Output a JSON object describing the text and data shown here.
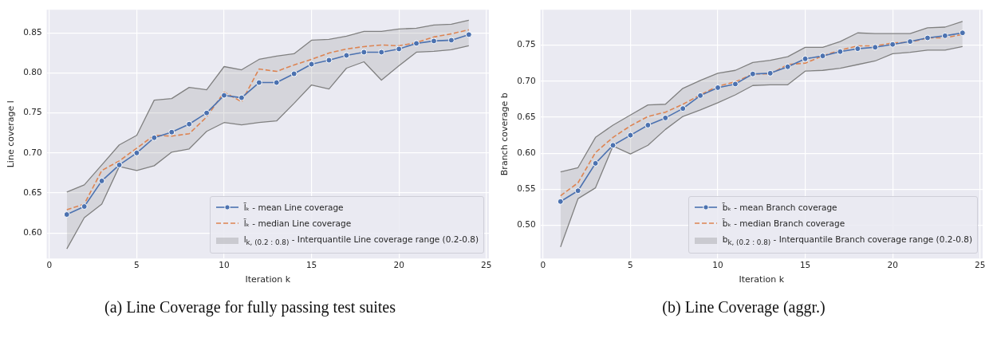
{
  "chart_data": [
    {
      "type": "line",
      "title": "(a) Line Coverage for fully passing test suites",
      "xlabel": "Iteration k",
      "ylabel": "Line coverage l",
      "x": [
        1,
        2,
        3,
        4,
        5,
        6,
        7,
        8,
        9,
        10,
        11,
        12,
        13,
        14,
        15,
        16,
        17,
        18,
        19,
        20,
        21,
        22,
        23,
        24
      ],
      "xlim": [
        -0.15,
        25.15
      ],
      "xticks": [
        0,
        5,
        10,
        15,
        20,
        25
      ],
      "ylim": [
        0.568,
        0.879
      ],
      "yticks": [
        {
          "value": 0.6,
          "label": "0.60"
        },
        {
          "value": 0.65,
          "label": "0.65"
        },
        {
          "value": 0.7,
          "label": "0.70"
        },
        {
          "value": 0.75,
          "label": "0.75"
        },
        {
          "value": 0.8,
          "label": "0.80"
        },
        {
          "value": 0.85,
          "label": "0.85"
        }
      ],
      "grid": true,
      "legend": "bottom right",
      "annotations": [
        "l$_{k, (0.2 : 0.8)}$ - Interquantile Line coverage range (0.2-0.8)"
      ],
      "series": [
        {
          "name": "l̄ₖ - mean Line coverage",
          "color": "#4c72b0",
          "marker": "circle",
          "values": [
            0.623,
            0.633,
            0.665,
            0.685,
            0.7,
            0.719,
            0.726,
            0.736,
            0.75,
            0.772,
            0.769,
            0.788,
            0.788,
            0.799,
            0.811,
            0.816,
            0.822,
            0.826,
            0.826,
            0.83,
            0.837,
            0.84,
            0.841,
            0.848
          ],
          "lower": [
            0.58,
            0.619,
            0.636,
            0.683,
            0.678,
            0.684,
            0.701,
            0.705,
            0.727,
            0.738,
            0.735,
            0.738,
            0.74,
            0.762,
            0.785,
            0.78,
            0.806,
            0.814,
            0.791,
            0.809,
            0.826,
            0.827,
            0.829,
            0.834
          ],
          "upper": [
            0.651,
            0.66,
            0.685,
            0.71,
            0.722,
            0.766,
            0.768,
            0.782,
            0.779,
            0.808,
            0.804,
            0.817,
            0.821,
            0.824,
            0.841,
            0.842,
            0.846,
            0.852,
            0.852,
            0.855,
            0.856,
            0.86,
            0.861,
            0.866
          ]
        },
        {
          "name": "l̃ₖ - median Line coverage",
          "color": "#dd8452",
          "line_style": "dashed",
          "values": [
            0.629,
            0.636,
            0.678,
            0.69,
            0.706,
            0.722,
            0.721,
            0.724,
            0.745,
            0.776,
            0.764,
            0.805,
            0.802,
            0.81,
            0.817,
            0.825,
            0.83,
            0.833,
            0.835,
            0.834,
            0.838,
            0.845,
            0.849,
            0.854
          ]
        },
        {
          "color": "#808080",
          "values": [
            0.58,
            0.619,
            0.636,
            0.683,
            0.678,
            0.684,
            0.701,
            0.705,
            0.727,
            0.738,
            0.735,
            0.738,
            0.74,
            0.762,
            0.785,
            0.78,
            0.806,
            0.814,
            0.791,
            0.809,
            0.826,
            0.827,
            0.829,
            0.834
          ]
        },
        {
          "color": "#808080",
          "values": [
            0.651,
            0.66,
            0.685,
            0.71,
            0.722,
            0.766,
            0.768,
            0.782,
            0.779,
            0.808,
            0.804,
            0.817,
            0.821,
            0.824,
            0.841,
            0.842,
            0.846,
            0.852,
            0.852,
            0.855,
            0.856,
            0.86,
            0.861,
            0.866
          ]
        }
      ]
    },
    {
      "type": "line",
      "title": "(b) Line Coverage (aggr.)",
      "xlabel": "Iteration k",
      "ylabel": "Branch coverage b",
      "x": [
        1,
        2,
        3,
        4,
        5,
        6,
        7,
        8,
        9,
        10,
        11,
        12,
        13,
        14,
        15,
        16,
        17,
        18,
        19,
        20,
        21,
        22,
        23,
        24
      ],
      "xlim": [
        -0.15,
        25.15
      ],
      "xticks": [
        0,
        5,
        10,
        15,
        20,
        25
      ],
      "ylim": [
        0.454,
        0.799
      ],
      "yticks": [
        {
          "value": 0.5,
          "label": "0.50"
        },
        {
          "value": 0.55,
          "label": "0.55"
        },
        {
          "value": 0.6,
          "label": "0.60"
        },
        {
          "value": 0.65,
          "label": "0.65"
        },
        {
          "value": 0.7,
          "label": "0.70"
        },
        {
          "value": 0.75,
          "label": "0.75"
        }
      ],
      "grid": true,
      "legend": "bottom right",
      "annotations": [
        "b$_{k, (0.2 : 0.8)}$ - Interquantile Branch coverage range (0.2-0.8)"
      ],
      "series": [
        {
          "name": "b̄ₖ - mean Branch coverage",
          "color": "#4c72b0",
          "marker": "circle",
          "values": [
            0.533,
            0.548,
            0.586,
            0.611,
            0.625,
            0.639,
            0.649,
            0.662,
            0.68,
            0.691,
            0.696,
            0.71,
            0.711,
            0.72,
            0.731,
            0.735,
            0.741,
            0.745,
            0.747,
            0.751,
            0.755,
            0.76,
            0.763,
            0.767
          ],
          "lower": [
            0.47,
            0.537,
            0.552,
            0.61,
            0.599,
            0.611,
            0.633,
            0.651,
            0.66,
            0.67,
            0.681,
            0.694,
            0.695,
            0.695,
            0.714,
            0.715,
            0.718,
            0.723,
            0.728,
            0.738,
            0.74,
            0.743,
            0.743,
            0.748
          ],
          "upper": [
            0.574,
            0.58,
            0.622,
            0.639,
            0.653,
            0.667,
            0.668,
            0.69,
            0.701,
            0.711,
            0.715,
            0.726,
            0.729,
            0.734,
            0.747,
            0.747,
            0.755,
            0.767,
            0.766,
            0.766,
            0.766,
            0.774,
            0.775,
            0.783
          ]
        },
        {
          "name": "b̃ₖ - median Branch coverage",
          "color": "#dd8452",
          "line_style": "dashed",
          "values": [
            0.541,
            0.559,
            0.601,
            0.622,
            0.638,
            0.651,
            0.657,
            0.668,
            0.681,
            0.693,
            0.699,
            0.71,
            0.71,
            0.723,
            0.725,
            0.735,
            0.743,
            0.749,
            0.749,
            0.753,
            0.754,
            0.76,
            0.76,
            0.765
          ]
        },
        {
          "color": "#808080",
          "values": [
            0.47,
            0.537,
            0.552,
            0.61,
            0.599,
            0.611,
            0.633,
            0.651,
            0.66,
            0.67,
            0.681,
            0.694,
            0.695,
            0.695,
            0.714,
            0.715,
            0.718,
            0.723,
            0.728,
            0.738,
            0.74,
            0.743,
            0.743,
            0.748
          ]
        },
        {
          "color": "#808080",
          "values": [
            0.574,
            0.58,
            0.622,
            0.639,
            0.653,
            0.667,
            0.668,
            0.69,
            0.701,
            0.711,
            0.715,
            0.726,
            0.729,
            0.734,
            0.747,
            0.747,
            0.755,
            0.767,
            0.766,
            0.766,
            0.766,
            0.774,
            0.775,
            0.783
          ]
        }
      ]
    }
  ]
}
